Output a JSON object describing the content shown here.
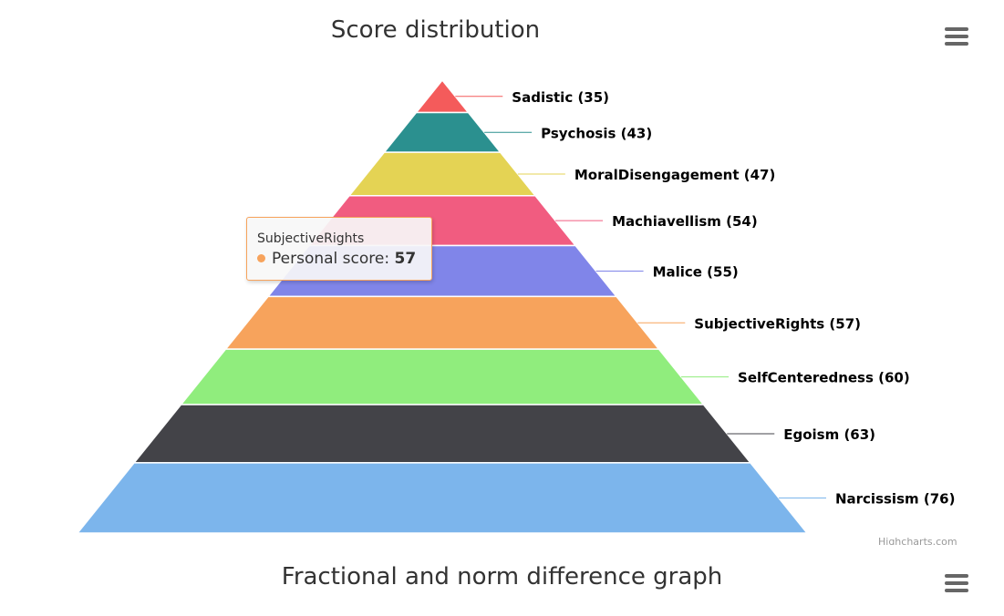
{
  "charts": {
    "first": {
      "title": "Score distribution",
      "menu_icon": "hamburger-menu-icon"
    },
    "second": {
      "title": "Fractional and norm difference graph",
      "menu_icon": "hamburger-menu-icon"
    }
  },
  "credits": "Highcharts.com",
  "tooltip": {
    "category": "SubjectiveRights",
    "series_name": "Personal score",
    "separator": ":",
    "value": "57",
    "color": "#f7a35c"
  },
  "chart_data": {
    "type": "pyramid",
    "title": "Score distribution",
    "series": [
      {
        "name": "Personal score"
      }
    ],
    "categories": [
      "Sadistic",
      "Psychosis",
      "MoralDisengagement",
      "Machiavellism",
      "Malice",
      "SubjectiveRights",
      "SelfCenteredness",
      "Egoism",
      "Narcissism"
    ],
    "values": [
      35,
      43,
      47,
      54,
      55,
      57,
      60,
      63,
      76
    ],
    "data_labels": [
      "Sadistic (35)",
      "Psychosis (43)",
      "MoralDisengagement (47)",
      "Machiavellism (54)",
      "Malice (55)",
      "SubjectiveRights (57)",
      "SelfCenteredness (60)",
      "Egoism (63)",
      "Narcissism (76)"
    ],
    "colors": [
      "#f45b5b",
      "#2b908f",
      "#e4d354",
      "#f15c80",
      "#8085e9",
      "#f7a35c",
      "#90ed7d",
      "#434348",
      "#7cb5ec"
    ]
  }
}
